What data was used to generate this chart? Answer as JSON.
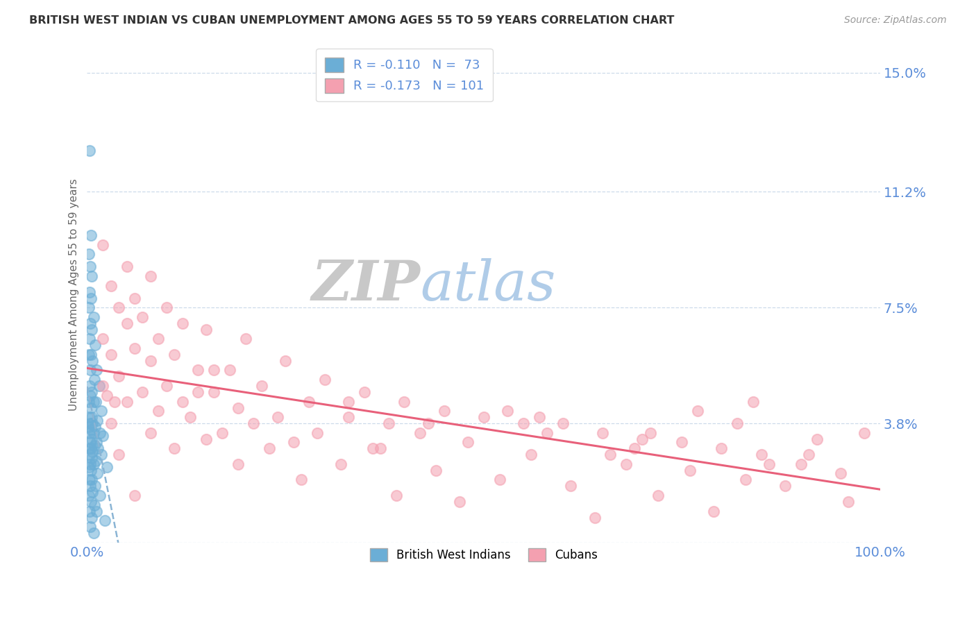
{
  "title": "BRITISH WEST INDIAN VS CUBAN UNEMPLOYMENT AMONG AGES 55 TO 59 YEARS CORRELATION CHART",
  "source": "Source: ZipAtlas.com",
  "ylabel": "Unemployment Among Ages 55 to 59 years",
  "xlim": [
    0,
    100
  ],
  "ylim_top": 15.8,
  "yticks": [
    0,
    3.8,
    7.5,
    11.2,
    15.0
  ],
  "ytick_labels": [
    "",
    "3.8%",
    "7.5%",
    "11.2%",
    "15.0%"
  ],
  "xticks": [
    0,
    100
  ],
  "xtick_labels": [
    "0.0%",
    "100.0%"
  ],
  "bwi_color": "#6baed6",
  "cuban_color": "#f4a0b0",
  "bwi_trend_color": "#8ab4d4",
  "cuban_trend_color": "#e8607a",
  "background_color": "#ffffff",
  "grid_color": "#c8d8e8",
  "title_color": "#333333",
  "tick_label_color": "#5b8dd9",
  "ylabel_color": "#666666",
  "bwi_scatter": [
    [
      0.3,
      12.5
    ],
    [
      0.5,
      9.8
    ],
    [
      0.2,
      9.2
    ],
    [
      0.4,
      8.8
    ],
    [
      0.6,
      8.5
    ],
    [
      0.3,
      8.0
    ],
    [
      0.5,
      7.8
    ],
    [
      0.2,
      7.5
    ],
    [
      0.8,
      7.2
    ],
    [
      0.4,
      7.0
    ],
    [
      0.6,
      6.8
    ],
    [
      0.3,
      6.5
    ],
    [
      1.0,
      6.3
    ],
    [
      0.5,
      6.0
    ],
    [
      0.2,
      6.0
    ],
    [
      0.7,
      5.8
    ],
    [
      1.2,
      5.5
    ],
    [
      0.4,
      5.5
    ],
    [
      0.9,
      5.2
    ],
    [
      1.5,
      5.0
    ],
    [
      0.3,
      5.0
    ],
    [
      0.6,
      4.8
    ],
    [
      0.4,
      4.7
    ],
    [
      0.8,
      4.5
    ],
    [
      1.1,
      4.5
    ],
    [
      0.2,
      4.5
    ],
    [
      0.5,
      4.3
    ],
    [
      1.8,
      4.2
    ],
    [
      0.6,
      4.0
    ],
    [
      0.3,
      4.0
    ],
    [
      1.3,
      3.9
    ],
    [
      0.7,
      3.8
    ],
    [
      0.4,
      3.8
    ],
    [
      1.0,
      3.7
    ],
    [
      0.2,
      3.7
    ],
    [
      0.5,
      3.6
    ],
    [
      0.8,
      3.5
    ],
    [
      1.6,
      3.5
    ],
    [
      0.3,
      3.5
    ],
    [
      2.0,
      3.4
    ],
    [
      0.6,
      3.3
    ],
    [
      1.2,
      3.2
    ],
    [
      0.4,
      3.2
    ],
    [
      0.9,
      3.1
    ],
    [
      0.2,
      3.0
    ],
    [
      1.4,
      3.0
    ],
    [
      0.5,
      3.0
    ],
    [
      0.7,
      2.9
    ],
    [
      1.8,
      2.8
    ],
    [
      0.3,
      2.8
    ],
    [
      0.6,
      2.7
    ],
    [
      1.1,
      2.6
    ],
    [
      0.4,
      2.5
    ],
    [
      0.8,
      2.5
    ],
    [
      2.5,
      2.4
    ],
    [
      0.2,
      2.4
    ],
    [
      0.5,
      2.3
    ],
    [
      1.3,
      2.2
    ],
    [
      0.6,
      2.0
    ],
    [
      0.3,
      2.0
    ],
    [
      1.0,
      1.8
    ],
    [
      0.4,
      1.8
    ],
    [
      0.7,
      1.6
    ],
    [
      1.6,
      1.5
    ],
    [
      0.2,
      1.5
    ],
    [
      0.5,
      1.3
    ],
    [
      0.9,
      1.2
    ],
    [
      1.2,
      1.0
    ],
    [
      0.3,
      1.0
    ],
    [
      0.6,
      0.8
    ],
    [
      2.2,
      0.7
    ],
    [
      0.4,
      0.5
    ],
    [
      0.8,
      0.3
    ]
  ],
  "cuban_scatter": [
    [
      2.0,
      9.5
    ],
    [
      5.0,
      8.8
    ],
    [
      8.0,
      8.5
    ],
    [
      3.0,
      8.2
    ],
    [
      6.0,
      7.8
    ],
    [
      10.0,
      7.5
    ],
    [
      4.0,
      7.5
    ],
    [
      7.0,
      7.2
    ],
    [
      12.0,
      7.0
    ],
    [
      5.0,
      7.0
    ],
    [
      15.0,
      6.8
    ],
    [
      9.0,
      6.5
    ],
    [
      2.0,
      6.5
    ],
    [
      20.0,
      6.5
    ],
    [
      6.0,
      6.2
    ],
    [
      11.0,
      6.0
    ],
    [
      3.0,
      6.0
    ],
    [
      25.0,
      5.8
    ],
    [
      8.0,
      5.8
    ],
    [
      14.0,
      5.5
    ],
    [
      18.0,
      5.5
    ],
    [
      4.0,
      5.3
    ],
    [
      30.0,
      5.2
    ],
    [
      10.0,
      5.0
    ],
    [
      22.0,
      5.0
    ],
    [
      35.0,
      4.8
    ],
    [
      7.0,
      4.8
    ],
    [
      16.0,
      4.8
    ],
    [
      2.5,
      4.7
    ],
    [
      28.0,
      4.5
    ],
    [
      12.0,
      4.5
    ],
    [
      40.0,
      4.5
    ],
    [
      5.0,
      4.5
    ],
    [
      19.0,
      4.3
    ],
    [
      45.0,
      4.2
    ],
    [
      9.0,
      4.2
    ],
    [
      33.0,
      4.0
    ],
    [
      24.0,
      4.0
    ],
    [
      50.0,
      4.0
    ],
    [
      13.0,
      4.0
    ],
    [
      3.0,
      3.8
    ],
    [
      38.0,
      3.8
    ],
    [
      55.0,
      3.8
    ],
    [
      21.0,
      3.8
    ],
    [
      60.0,
      3.8
    ],
    [
      17.0,
      3.5
    ],
    [
      42.0,
      3.5
    ],
    [
      65.0,
      3.5
    ],
    [
      8.0,
      3.5
    ],
    [
      29.0,
      3.5
    ],
    [
      70.0,
      3.3
    ],
    [
      15.0,
      3.3
    ],
    [
      48.0,
      3.2
    ],
    [
      75.0,
      3.2
    ],
    [
      11.0,
      3.0
    ],
    [
      36.0,
      3.0
    ],
    [
      80.0,
      3.0
    ],
    [
      23.0,
      3.0
    ],
    [
      4.0,
      2.8
    ],
    [
      56.0,
      2.8
    ],
    [
      85.0,
      2.8
    ],
    [
      32.0,
      2.5
    ],
    [
      68.0,
      2.5
    ],
    [
      90.0,
      2.5
    ],
    [
      19.0,
      2.5
    ],
    [
      44.0,
      2.3
    ],
    [
      76.0,
      2.3
    ],
    [
      95.0,
      2.2
    ],
    [
      52.0,
      2.0
    ],
    [
      83.0,
      2.0
    ],
    [
      27.0,
      2.0
    ],
    [
      61.0,
      1.8
    ],
    [
      88.0,
      1.8
    ],
    [
      39.0,
      1.5
    ],
    [
      72.0,
      1.5
    ],
    [
      6.0,
      1.5
    ],
    [
      96.0,
      1.3
    ],
    [
      47.0,
      1.3
    ],
    [
      79.0,
      1.0
    ],
    [
      64.0,
      0.8
    ],
    [
      91.0,
      2.8
    ],
    [
      58.0,
      3.5
    ],
    [
      3.5,
      4.5
    ],
    [
      16.0,
      5.5
    ],
    [
      77.0,
      4.2
    ],
    [
      33.0,
      4.5
    ],
    [
      69.0,
      3.0
    ],
    [
      2.0,
      5.0
    ],
    [
      86.0,
      2.5
    ],
    [
      43.0,
      3.8
    ],
    [
      57.0,
      4.0
    ],
    [
      71.0,
      3.5
    ],
    [
      84.0,
      4.5
    ],
    [
      26.0,
      3.2
    ],
    [
      98.0,
      3.5
    ],
    [
      14.0,
      4.8
    ],
    [
      53.0,
      4.2
    ],
    [
      37.0,
      3.0
    ],
    [
      82.0,
      3.8
    ],
    [
      66.0,
      2.8
    ],
    [
      92.0,
      3.3
    ]
  ]
}
